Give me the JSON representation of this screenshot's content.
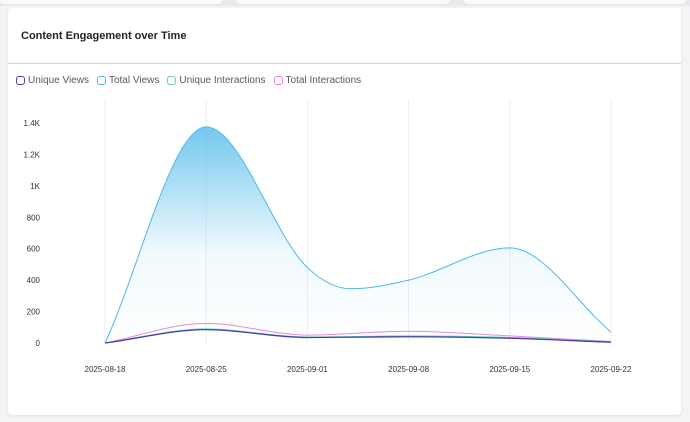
{
  "header": {
    "title": "Content Engagement over Time"
  },
  "colors": {
    "unique_views": "#4b3fa0",
    "total_views": "#4cb8ea",
    "unique_interactions": "#5fd3c6",
    "total_interactions": "#e28be0",
    "grid": "#eceef0"
  },
  "chart_data": {
    "type": "area",
    "title": "Content Engagement over Time",
    "xlabel": "",
    "ylabel": "",
    "x_ticks": [
      "2025-08-18",
      "2025-08-25",
      "2025-09-01",
      "2025-09-08",
      "2025-09-15",
      "2025-09-22"
    ],
    "y_ticks": [
      "0",
      "200",
      "400",
      "600",
      "800",
      "1K",
      "1.2K",
      "1.4K"
    ],
    "y_tick_values": [
      0,
      200,
      400,
      600,
      800,
      1000,
      1200,
      1400
    ],
    "ylim": [
      0,
      1400
    ],
    "grid": "vertical",
    "legend": "top-left",
    "series": [
      {
        "name": "Unique Views",
        "points": [
          [
            "2025-08-18",
            0
          ],
          [
            "2025-08-25",
            85
          ],
          [
            "2025-09-01",
            35
          ],
          [
            "2025-09-08",
            40
          ],
          [
            "2025-09-15",
            30
          ],
          [
            "2025-09-22",
            5
          ]
        ]
      },
      {
        "name": "Total Views",
        "points": [
          [
            "2025-08-18",
            0
          ],
          [
            "2025-08-25",
            1375
          ],
          [
            "2025-09-01",
            480
          ],
          [
            "2025-09-04",
            345
          ],
          [
            "2025-09-08",
            400
          ],
          [
            "2025-09-15",
            605
          ],
          [
            "2025-09-22",
            70
          ]
        ]
      },
      {
        "name": "Unique Interactions",
        "points": [
          [
            "2025-08-18",
            0
          ],
          [
            "2025-08-25",
            90
          ],
          [
            "2025-09-01",
            38
          ],
          [
            "2025-09-08",
            45
          ],
          [
            "2025-09-15",
            35
          ],
          [
            "2025-09-22",
            8
          ]
        ]
      },
      {
        "name": "Total Interactions",
        "points": [
          [
            "2025-08-18",
            0
          ],
          [
            "2025-08-25",
            125
          ],
          [
            "2025-09-01",
            50
          ],
          [
            "2025-09-08",
            75
          ],
          [
            "2025-09-15",
            45
          ],
          [
            "2025-09-22",
            10
          ]
        ]
      }
    ]
  }
}
